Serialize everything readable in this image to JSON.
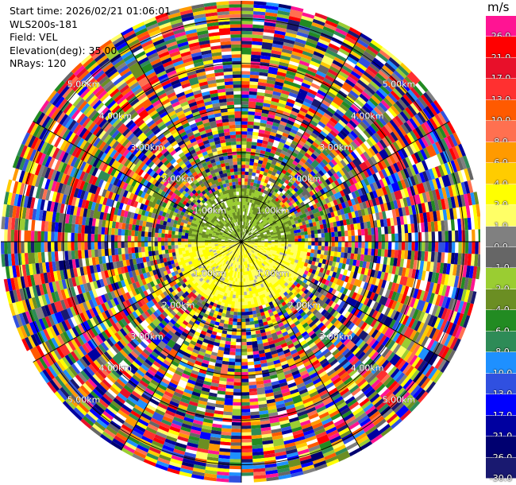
{
  "info": {
    "start_time": "Start time: 2026/02/21 01:06:01",
    "instrument": "WLS200s-181",
    "field": "Field: VEL",
    "elevation": "Elevation(deg): 35.00",
    "nrays": "NRays: 120"
  },
  "colorbar": {
    "unit": "m/s",
    "levels": [
      {
        "label": "26.0",
        "color": "#FF1493"
      },
      {
        "label": "21.0",
        "color": "#FF0000"
      },
      {
        "label": "17.0",
        "color": "#E8102A"
      },
      {
        "label": "13.0",
        "color": "#FF3030"
      },
      {
        "label": "10.0",
        "color": "#FF5A00"
      },
      {
        "label": "8.0",
        "color": "#FF7050"
      },
      {
        "label": "6.0",
        "color": "#FF9A00"
      },
      {
        "label": "4.0",
        "color": "#FFCC00"
      },
      {
        "label": "2.0",
        "color": "#FFFF00"
      },
      {
        "label": "1.0",
        "color": "#FFFF66"
      },
      {
        "label": "0.0",
        "color": "#808080"
      },
      {
        "label": "-1.0",
        "color": "#666666"
      },
      {
        "label": "-2.0",
        "color": "#9ACD32"
      },
      {
        "label": "-4.0",
        "color": "#6B8E23"
      },
      {
        "label": "-6.0",
        "color": "#228B22"
      },
      {
        "label": "-8.0",
        "color": "#2E8B57"
      },
      {
        "label": "-10.0",
        "color": "#1E90FF"
      },
      {
        "label": "-13.0",
        "color": "#3050E0"
      },
      {
        "label": "-17.0",
        "color": "#0000FF"
      },
      {
        "label": "-21.0",
        "color": "#0000A0"
      },
      {
        "label": "-26.0",
        "color": "#000070"
      },
      {
        "label": "-30.0",
        "color": "#191970"
      }
    ]
  },
  "chart_data": {
    "type": "heatmap",
    "subtype": "ppi",
    "n_rays": 120,
    "range_rings_km": [
      1,
      2,
      3,
      4,
      5
    ],
    "range_labels": [
      "1.00km",
      "2.00km",
      "3.00km",
      "4.00km",
      "5.00km"
    ],
    "max_range_km": 5.4,
    "near_field": {
      "north_value_ms": -2.0,
      "south_value_ms": 2.0,
      "gate_limit_km": 1.45
    },
    "far_field": "noisy velocities spanning -30 to 26 m/s"
  }
}
